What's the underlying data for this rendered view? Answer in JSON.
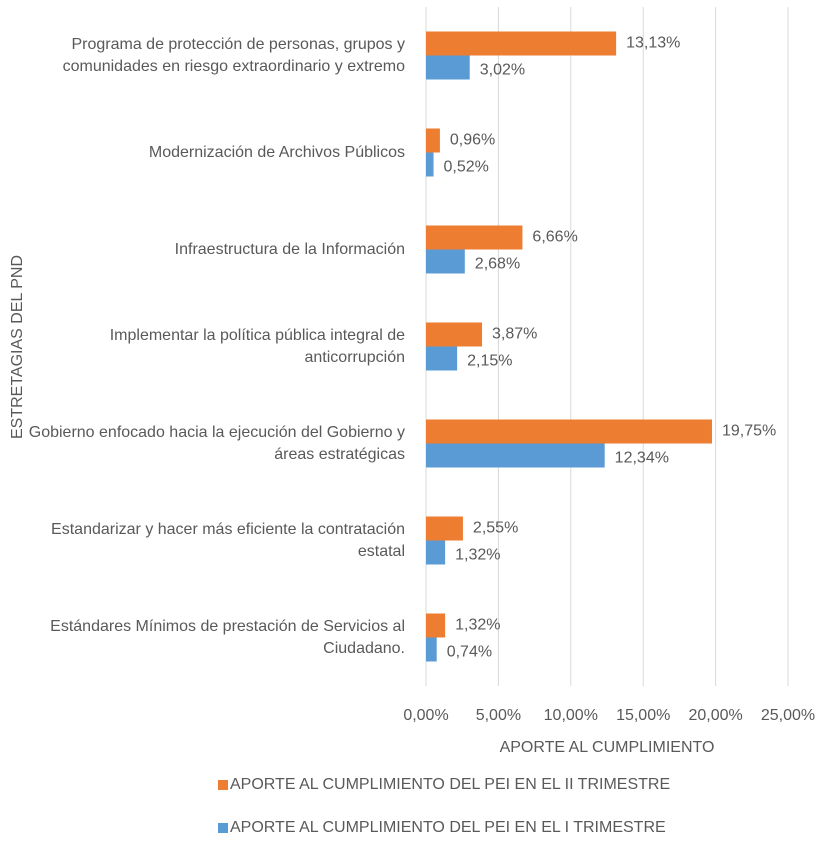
{
  "chart_data": {
    "type": "bar",
    "orientation": "horizontal",
    "x_label": "APORTE AL CUMPLIMIENTO",
    "y_label": "ESTRETAGIAS DEL PND",
    "categories": [
      "Programa de protección de personas, grupos y comunidades en riesgo extraordinario y extremo",
      "Modernización de Archivos Públicos",
      "Infraestructura de la Información",
      "Implementar la política pública integral de anticorrupción",
      "Gobierno enfocado hacia la ejecución del Gobierno y áreas estratégicas",
      "Estandarizar y hacer más eficiente la contratación estatal",
      "Estándares Mínimos de prestación de Servicios  al Ciudadano."
    ],
    "series": [
      {
        "name": "APORTE AL CUMPLIMIENTO DEL PEI EN EL II TRIMESTRE",
        "color": "#ed7d31",
        "values": [
          13.13,
          0.96,
          6.66,
          3.87,
          19.75,
          2.55,
          1.32
        ],
        "value_labels": [
          "13,13%",
          "0,96%",
          "6,66%",
          "3,87%",
          "19,75%",
          "2,55%",
          "1,32%"
        ]
      },
      {
        "name": "APORTE AL CUMPLIMIENTO DEL PEI EN EL I TRIMESTRE",
        "color": "#5b9bd5",
        "values": [
          3.02,
          0.52,
          2.68,
          2.15,
          12.34,
          1.32,
          0.74
        ],
        "value_labels": [
          "3,02%",
          "0,52%",
          "2,68%",
          "2,15%",
          "12,34%",
          "1,32%",
          "0,74%"
        ]
      }
    ],
    "xlim": [
      0,
      25
    ],
    "xticks": [
      {
        "value": 0,
        "label": "0,00%"
      },
      {
        "value": 5,
        "label": "5,00%"
      },
      {
        "value": 10,
        "label": "10,00%"
      },
      {
        "value": 15,
        "label": "15,00%"
      },
      {
        "value": 20,
        "label": "20,00%"
      },
      {
        "value": 25,
        "label": "25,00%"
      }
    ],
    "grid": true,
    "legend": "bottom"
  }
}
